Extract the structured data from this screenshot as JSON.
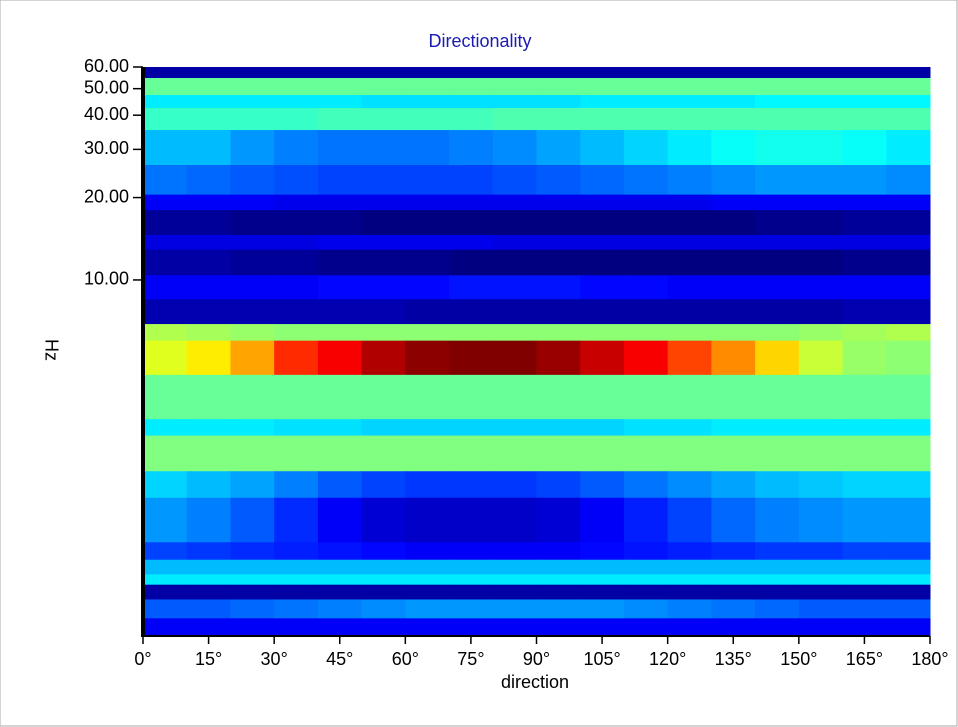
{
  "chart_data": {
    "type": "heatmap",
    "title": "Directionality",
    "x_label": "direction",
    "y_label": "Hz",
    "colormap": "jet",
    "log_y": true,
    "xlim": [
      0,
      180
    ],
    "xticks": [
      {
        "value": 0,
        "label": "0°"
      },
      {
        "value": 15,
        "label": "15°"
      },
      {
        "value": 30,
        "label": "30°"
      },
      {
        "value": 45,
        "label": "45°"
      },
      {
        "value": 60,
        "label": "60°"
      },
      {
        "value": 75,
        "label": "75°"
      },
      {
        "value": 90,
        "label": "90°"
      },
      {
        "value": 105,
        "label": "105°"
      },
      {
        "value": 120,
        "label": "120°"
      },
      {
        "value": 135,
        "label": "135°"
      },
      {
        "value": 150,
        "label": "150°"
      },
      {
        "value": 165,
        "label": "165°"
      },
      {
        "value": 180,
        "label": "180°"
      }
    ],
    "ylim": [
      0.5,
      60
    ],
    "yticks": [
      {
        "value": 10,
        "label": "10.00"
      },
      {
        "value": 20,
        "label": "20.00"
      },
      {
        "value": 30,
        "label": "30.00"
      },
      {
        "value": 40,
        "label": "40.00"
      },
      {
        "value": 50,
        "label": "50.00"
      },
      {
        "value": 60,
        "label": "60.00"
      }
    ],
    "x_bins": [
      0,
      10,
      20,
      30,
      40,
      50,
      60,
      70,
      80,
      90,
      100,
      110,
      120,
      130,
      140,
      150,
      160,
      170,
      180
    ],
    "y_bins": [
      60,
      54.7,
      47.4,
      42.5,
      35.3,
      26.3,
      20.5,
      18,
      14.6,
      12.9,
      10.4,
      8.5,
      6.9,
      6,
      4.5,
      3.1,
      2.7,
      2,
      1.6,
      1.1,
      0.95,
      0.84,
      0.77,
      0.68,
      0.58,
      0.5
    ],
    "values": [
      [
        15,
        15,
        15,
        15,
        15,
        15,
        15,
        15,
        15,
        15,
        15,
        15,
        15,
        15,
        15,
        15,
        15,
        15
      ],
      [
        52,
        52,
        52,
        52,
        52,
        52,
        52,
        52,
        52,
        52,
        52,
        52,
        52,
        52,
        52,
        52,
        52,
        52
      ],
      [
        42,
        42,
        42,
        42,
        42,
        41,
        41,
        41,
        41,
        41,
        42,
        42,
        42,
        42,
        43,
        43,
        43,
        43
      ],
      [
        48,
        48,
        48,
        48,
        49,
        49,
        49,
        49,
        50,
        50,
        50,
        50,
        50,
        50,
        50,
        50,
        50,
        50
      ],
      [
        38,
        38,
        35,
        33,
        32,
        32,
        32,
        33,
        34,
        36,
        38,
        40,
        42,
        44,
        45,
        45,
        44,
        42
      ],
      [
        32,
        31,
        30,
        29,
        28,
        28,
        28,
        28,
        29,
        30,
        31,
        32,
        33,
        34,
        35,
        35,
        35,
        34
      ],
      [
        22,
        22,
        22,
        21,
        21,
        21,
        21,
        21,
        21,
        21,
        21,
        21,
        21,
        22,
        22,
        22,
        22,
        22
      ],
      [
        14,
        14,
        13,
        13,
        13,
        12,
        12,
        12,
        12,
        12,
        12,
        12,
        12,
        12,
        13,
        13,
        14,
        14
      ],
      [
        20,
        20,
        20,
        20,
        21,
        21,
        21,
        21,
        20,
        20,
        20,
        20,
        20,
        20,
        20,
        20,
        20,
        20
      ],
      [
        15,
        15,
        14,
        14,
        13,
        13,
        13,
        12,
        12,
        12,
        12,
        12,
        12,
        12,
        12,
        12,
        13,
        13
      ],
      [
        22,
        22,
        22,
        22,
        23,
        23,
        23,
        24,
        24,
        24,
        23,
        23,
        22,
        22,
        22,
        22,
        22,
        22
      ],
      [
        16,
        16,
        16,
        16,
        16,
        16,
        15,
        15,
        15,
        15,
        15,
        15,
        15,
        15,
        15,
        15,
        16,
        16
      ],
      [
        58,
        57,
        56,
        55,
        55,
        55,
        55,
        55,
        55,
        55,
        55,
        55,
        55,
        55,
        55,
        56,
        57,
        58
      ],
      [
        62,
        66,
        72,
        82,
        86,
        92,
        95,
        96,
        96,
        94,
        90,
        86,
        80,
        74,
        68,
        60,
        56,
        55
      ],
      [
        52,
        52,
        52,
        52,
        52,
        52,
        52,
        52,
        52,
        52,
        52,
        52,
        52,
        52,
        52,
        52,
        52,
        52
      ],
      [
        42,
        42,
        42,
        41,
        41,
        40,
        40,
        40,
        40,
        40,
        40,
        41,
        41,
        42,
        42,
        42,
        42,
        42
      ],
      [
        54,
        54,
        54,
        54,
        54,
        54,
        54,
        54,
        54,
        54,
        54,
        54,
        54,
        54,
        54,
        54,
        54,
        54
      ],
      [
        40,
        38,
        36,
        33,
        30,
        28,
        27,
        27,
        27,
        28,
        30,
        32,
        34,
        36,
        38,
        39,
        40,
        40
      ],
      [
        35,
        33,
        30,
        26,
        22,
        19,
        18,
        18,
        18,
        19,
        22,
        25,
        28,
        31,
        33,
        34,
        35,
        35
      ],
      [
        28,
        27,
        26,
        25,
        24,
        23,
        22,
        22,
        22,
        22,
        23,
        24,
        25,
        26,
        27,
        27,
        28,
        28
      ],
      [
        38,
        38,
        38,
        38,
        38,
        38,
        38,
        38,
        38,
        38,
        38,
        38,
        38,
        38,
        38,
        38,
        38,
        38
      ],
      [
        42,
        42,
        42,
        42,
        42,
        42,
        42,
        42,
        42,
        42,
        42,
        42,
        42,
        42,
        42,
        42,
        42,
        42
      ],
      [
        15,
        15,
        15,
        15,
        15,
        15,
        15,
        15,
        15,
        15,
        15,
        15,
        15,
        15,
        15,
        15,
        15,
        15
      ],
      [
        30,
        30,
        31,
        32,
        33,
        34,
        35,
        35,
        35,
        35,
        35,
        34,
        33,
        32,
        31,
        30,
        30,
        30
      ],
      [
        22,
        22,
        22,
        22,
        22,
        22,
        22,
        22,
        22,
        22,
        22,
        22,
        22,
        22,
        22,
        22,
        22,
        22
      ]
    ]
  }
}
